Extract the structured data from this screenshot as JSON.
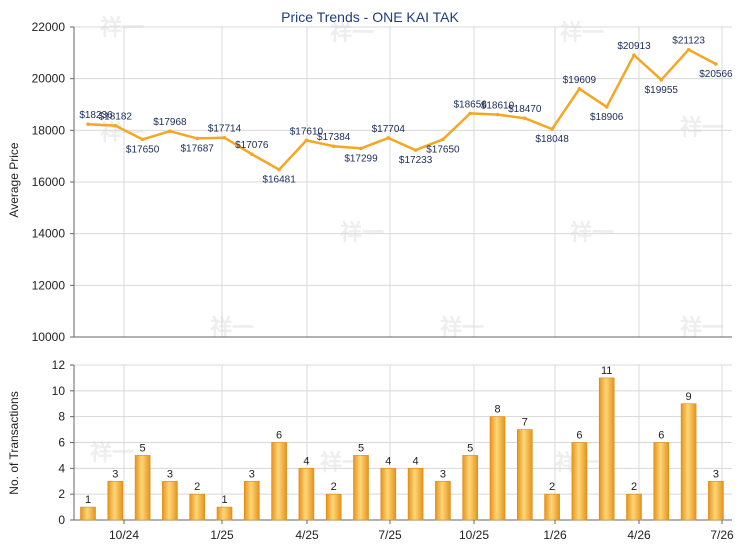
{
  "chart_data": [
    {
      "type": "line",
      "title": "Price Trends - ONE KAI TAK",
      "ylabel": "Average Price",
      "ylim": [
        10000,
        22000
      ],
      "yticks": [
        10000,
        12000,
        14000,
        16000,
        18000,
        20000,
        22000
      ],
      "grid": true,
      "line_color": "#f5a623",
      "label_prefix": "$",
      "values": [
        18236,
        18182,
        17650,
        17968,
        17687,
        17714,
        17076,
        16481,
        17610,
        17384,
        17299,
        17704,
        17233,
        17650,
        18656,
        18610,
        18470,
        18048,
        19609,
        18906,
        20913,
        19955,
        21123,
        20566
      ]
    },
    {
      "type": "bar",
      "ylabel": "No. of Transactions",
      "ylim": [
        0,
        12
      ],
      "yticks": [
        0,
        2,
        4,
        6,
        8,
        10,
        12
      ],
      "xtick_labels": [
        "10/24",
        "1/25",
        "4/25",
        "7/25",
        "10/25",
        "1/26",
        "4/26",
        "7/26"
      ],
      "grid": true,
      "bar_color": "#f5a623",
      "values": [
        1,
        3,
        5,
        3,
        2,
        1,
        3,
        6,
        4,
        2,
        5,
        4,
        4,
        3,
        5,
        8,
        7,
        2,
        6,
        11,
        2,
        6,
        9,
        3
      ]
    }
  ],
  "watermark": "祥一"
}
